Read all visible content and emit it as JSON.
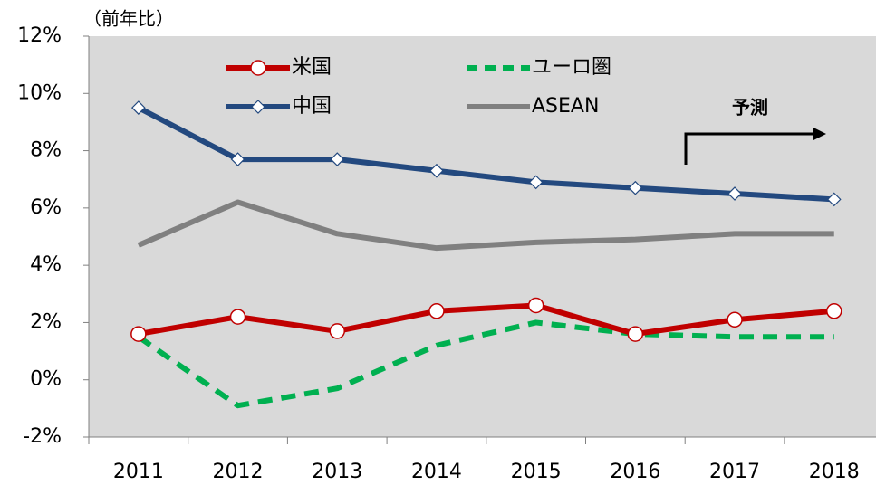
{
  "chart_data": {
    "type": "line",
    "y_axis_label": "（前年比）",
    "annotation": "予測",
    "categories": [
      "2011",
      "2012",
      "2013",
      "2014",
      "2015",
      "2016",
      "2017",
      "2018"
    ],
    "series": [
      {
        "name": "ユーロ圏",
        "color": "#00b050",
        "dash": true,
        "values": [
          1.5,
          -0.9,
          -0.3,
          1.2,
          2.0,
          1.6,
          1.5,
          1.5
        ]
      },
      {
        "name": "ASEAN",
        "color": "#808080",
        "values": [
          4.7,
          6.2,
          5.1,
          4.6,
          4.8,
          4.9,
          5.1,
          5.1
        ]
      },
      {
        "name": "中国",
        "color": "#23497f",
        "marker": "diamond",
        "values": [
          9.5,
          7.7,
          7.7,
          7.3,
          6.9,
          6.7,
          6.5,
          6.3
        ]
      },
      {
        "name": "米国",
        "color": "#c00000",
        "marker": "circle",
        "values": [
          1.6,
          2.2,
          1.7,
          2.4,
          2.6,
          1.6,
          2.1,
          2.4
        ]
      }
    ],
    "ylim": [
      -2,
      12
    ],
    "yticks": [
      {
        "value": -2,
        "label": "-2%"
      },
      {
        "value": 0,
        "label": "0%"
      },
      {
        "value": 2,
        "label": "2%"
      },
      {
        "value": 4,
        "label": "4%"
      },
      {
        "value": 6,
        "label": "6%"
      },
      {
        "value": 8,
        "label": "8%"
      },
      {
        "value": 10,
        "label": "10%"
      },
      {
        "value": 12,
        "label": "12%"
      }
    ],
    "plot_background": "#d9d9d9"
  }
}
